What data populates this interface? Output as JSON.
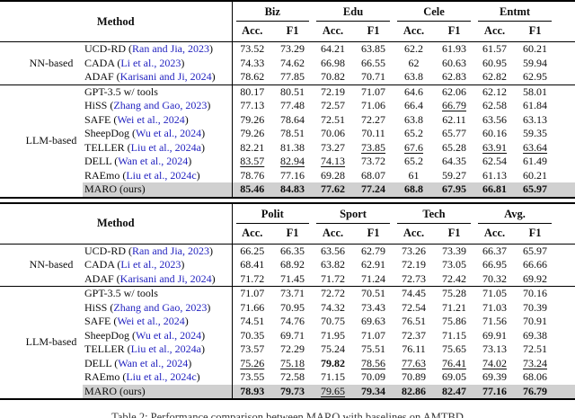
{
  "caption": "Table 2: Performance comparison between MARO with baselines on AMTBD",
  "colors": {
    "citation_blue": "#2424c0",
    "highlight_gray": "#d0d0d0",
    "rule_black": "#000000",
    "page_background": "#ffffff"
  },
  "tables": [
    {
      "method_header": "Method",
      "groups": [
        "Biz",
        "Edu",
        "Cele",
        "Entmt"
      ],
      "metric_headers": [
        "Acc.",
        "F1"
      ],
      "blocks": [
        {
          "label": "NN-based",
          "rows": [
            {
              "method": "UCD-RD",
              "citation": "Ran and Jia, 2023",
              "values": [
                "73.52",
                "73.29",
                "64.21",
                "63.85",
                "62.2",
                "61.93",
                "61.57",
                "60.21"
              ],
              "styles": [
                "",
                "",
                "",
                "",
                "",
                "",
                "",
                ""
              ]
            },
            {
              "method": "CADA",
              "citation": "Li et al., 2023",
              "values": [
                "74.33",
                "74.62",
                "66.98",
                "66.55",
                "62",
                "60.63",
                "60.95",
                "59.94"
              ],
              "styles": [
                "",
                "",
                "",
                "",
                "",
                "",
                "",
                ""
              ]
            },
            {
              "method": "ADAF",
              "citation": "Karisani and Ji, 2024",
              "values": [
                "78.62",
                "77.85",
                "70.82",
                "70.71",
                "63.8",
                "62.83",
                "62.82",
                "62.95"
              ],
              "styles": [
                "",
                "",
                "",
                "",
                "",
                "",
                "",
                ""
              ]
            }
          ]
        },
        {
          "label": "LLM-based",
          "rows": [
            {
              "method": "GPT-3.5 w/ tools",
              "citation": null,
              "values": [
                "80.17",
                "80.51",
                "72.19",
                "71.07",
                "64.6",
                "62.06",
                "62.12",
                "58.01"
              ],
              "styles": [
                "",
                "",
                "",
                "",
                "",
                "",
                "",
                ""
              ]
            },
            {
              "method": "HiSS",
              "citation": "Zhang and Gao, 2023",
              "values": [
                "77.13",
                "77.48",
                "72.57",
                "71.06",
                "66.4",
                "66.79",
                "62.58",
                "61.84"
              ],
              "styles": [
                "",
                "",
                "",
                "",
                "",
                "u",
                "",
                ""
              ]
            },
            {
              "method": "SAFE",
              "citation": "Wei et al., 2024",
              "values": [
                "79.26",
                "78.64",
                "72.51",
                "72.27",
                "63.8",
                "62.11",
                "63.56",
                "63.13"
              ],
              "styles": [
                "",
                "",
                "",
                "",
                "",
                "",
                "",
                ""
              ]
            },
            {
              "method": "SheepDog",
              "citation": "Wu et al., 2024",
              "values": [
                "79.26",
                "78.51",
                "70.06",
                "70.11",
                "65.2",
                "65.77",
                "60.16",
                "59.35"
              ],
              "styles": [
                "",
                "",
                "",
                "",
                "",
                "",
                "",
                ""
              ]
            },
            {
              "method": "TELLER",
              "citation": "Liu et al., 2024a",
              "values": [
                "82.21",
                "81.38",
                "73.27",
                "73.85",
                "67.6",
                "65.28",
                "63.91",
                "63.64"
              ],
              "styles": [
                "",
                "",
                "",
                "u",
                "u",
                "",
                "u",
                "u"
              ]
            },
            {
              "method": "DELL",
              "citation": "Wan et al., 2024",
              "values": [
                "83.57",
                "82.94",
                "74.13",
                "73.72",
                "65.2",
                "64.35",
                "62.54",
                "61.49"
              ],
              "styles": [
                "u",
                "u",
                "u",
                "",
                "",
                "",
                "",
                ""
              ]
            },
            {
              "method": "RAEmo",
              "citation": "Liu et al., 2024c",
              "values": [
                "78.76",
                "77.16",
                "69.28",
                "68.07",
                "61",
                "59.27",
                "61.13",
                "60.21"
              ],
              "styles": [
                "",
                "",
                "",
                "",
                "",
                "",
                "",
                ""
              ]
            },
            {
              "method": "MARO (ours)",
              "citation": null,
              "highlight": true,
              "values": [
                "85.46",
                "84.83",
                "77.62",
                "77.24",
                "68.8",
                "67.95",
                "66.81",
                "65.97"
              ],
              "styles": [
                "b",
                "b",
                "b",
                "b",
                "b",
                "b",
                "b",
                "b"
              ]
            }
          ]
        }
      ]
    },
    {
      "method_header": "Method",
      "groups": [
        "Polit",
        "Sport",
        "Tech",
        "Avg."
      ],
      "metric_headers": [
        "Acc.",
        "F1"
      ],
      "blocks": [
        {
          "label": "NN-based",
          "rows": [
            {
              "method": "UCD-RD",
              "citation": "Ran and Jia, 2023",
              "values": [
                "66.25",
                "66.35",
                "63.56",
                "62.79",
                "73.26",
                "73.39",
                "66.37",
                "65.97"
              ],
              "styles": [
                "",
                "",
                "",
                "",
                "",
                "",
                "",
                ""
              ]
            },
            {
              "method": "CADA",
              "citation": "Li et al., 2023",
              "values": [
                "68.41",
                "68.92",
                "63.82",
                "62.91",
                "72.19",
                "73.05",
                "66.95",
                "66.66"
              ],
              "styles": [
                "",
                "",
                "",
                "",
                "",
                "",
                "",
                ""
              ]
            },
            {
              "method": "ADAF",
              "citation": "Karisani and Ji, 2024",
              "values": [
                "71.72",
                "71.45",
                "71.72",
                "71.24",
                "72.73",
                "72.42",
                "70.32",
                "69.92"
              ],
              "styles": [
                "",
                "",
                "",
                "",
                "",
                "",
                "",
                ""
              ]
            }
          ]
        },
        {
          "label": "LLM-based",
          "rows": [
            {
              "method": "GPT-3.5 w/ tools",
              "citation": null,
              "values": [
                "71.07",
                "73.71",
                "72.72",
                "70.51",
                "74.45",
                "75.28",
                "71.05",
                "70.16"
              ],
              "styles": [
                "",
                "",
                "",
                "",
                "",
                "",
                "",
                ""
              ]
            },
            {
              "method": "HiSS",
              "citation": "Zhang and Gao, 2023",
              "values": [
                "71.66",
                "70.95",
                "74.32",
                "73.43",
                "72.54",
                "71.21",
                "71.03",
                "70.39"
              ],
              "styles": [
                "",
                "",
                "",
                "",
                "",
                "",
                "",
                ""
              ]
            },
            {
              "method": "SAFE",
              "citation": "Wei et al., 2024",
              "values": [
                "74.51",
                "74.76",
                "70.75",
                "69.63",
                "76.51",
                "75.86",
                "71.56",
                "70.91"
              ],
              "styles": [
                "",
                "",
                "",
                "",
                "",
                "",
                "",
                ""
              ]
            },
            {
              "method": "SheepDog",
              "citation": "Wu et al., 2024",
              "values": [
                "70.35",
                "69.71",
                "71.95",
                "71.07",
                "72.37",
                "71.15",
                "69.91",
                "69.38"
              ],
              "styles": [
                "",
                "",
                "",
                "",
                "",
                "",
                "",
                ""
              ]
            },
            {
              "method": "TELLER",
              "citation": "Liu et al., 2024a",
              "values": [
                "73.57",
                "72.29",
                "75.24",
                "75.51",
                "76.11",
                "75.65",
                "73.13",
                "72.51"
              ],
              "styles": [
                "",
                "",
                "",
                "",
                "",
                "",
                "",
                ""
              ]
            },
            {
              "method": "DELL",
              "citation": "Wan et al., 2024",
              "values": [
                "75.26",
                "75.18",
                "79.82",
                "78.56",
                "77.63",
                "76.41",
                "74.02",
                "73.24"
              ],
              "styles": [
                "u",
                "u",
                "b",
                "u",
                "u",
                "u",
                "u",
                "u"
              ]
            },
            {
              "method": "RAEmo",
              "citation": "Liu et al., 2024c",
              "values": [
                "73.55",
                "72.58",
                "71.15",
                "70.09",
                "70.89",
                "69.05",
                "69.39",
                "68.06"
              ],
              "styles": [
                "",
                "",
                "",
                "",
                "",
                "",
                "",
                ""
              ]
            },
            {
              "method": "MARO (ours)",
              "citation": null,
              "highlight": true,
              "values": [
                "78.93",
                "79.73",
                "79.65",
                "79.34",
                "82.86",
                "82.47",
                "77.16",
                "76.79"
              ],
              "styles": [
                "b",
                "b",
                "u",
                "b",
                "b",
                "b",
                "b",
                "b"
              ]
            }
          ]
        }
      ]
    }
  ]
}
